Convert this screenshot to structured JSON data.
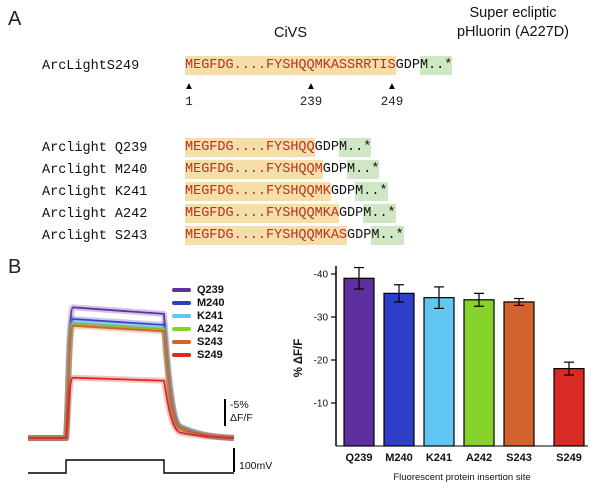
{
  "figure": {
    "panel_a_label": "A",
    "panel_b_label": "B"
  },
  "panelA": {
    "civs_header": "CiVS",
    "phluorin_header_line1": "Super ecliptic",
    "phluorin_header_line2": "pHluorin (A227D)",
    "reference": {
      "name": "ArcLightS249",
      "civs_seq": "MEGFDG....FYSHQQMKASSRRTIS",
      "linker_seq": "GDP",
      "phluorin_seq": "M..*"
    },
    "insertion_markers": [
      "1",
      "239",
      "249"
    ],
    "variants": [
      {
        "name": "Arclight Q239",
        "civs_seq": "MEGFDG....FYSHQQ",
        "linker_seq": "GDP",
        "phluorin_seq": "M..*"
      },
      {
        "name": "Arclight M240",
        "civs_seq": "MEGFDG....FYSHQQM",
        "linker_seq": "GDP",
        "phluorin_seq": "M..*"
      },
      {
        "name": "Arclight K241",
        "civs_seq": "MEGFDG....FYSHQQMK",
        "linker_seq": "GDP",
        "phluorin_seq": "M..*"
      },
      {
        "name": "Arclight A242",
        "civs_seq": "MEGFDG....FYSHQQMKA",
        "linker_seq": "GDP",
        "phluorin_seq": "M..*"
      },
      {
        "name": "Arclight S243",
        "civs_seq": "MEGFDG....FYSHQQMKAS",
        "linker_seq": "GDP",
        "phluorin_seq": "M..*"
      }
    ],
    "highlight_colors": {
      "civs_bg": "#f3dfa7",
      "civs_text": "#bf2f25",
      "phluorin_bg": "#cfe7c4"
    }
  },
  "panelB": {
    "scalebar_dff_value": "-5%",
    "scalebar_dff_unit": "ΔF/F",
    "scalebar_voltage": "100mV"
  },
  "chart_data": [
    {
      "type": "line",
      "series": [
        {
          "name": "Q239",
          "color": "#5e2f9e",
          "peak_dff_pct": -39
        },
        {
          "name": "M240",
          "color": "#2f3ec9",
          "peak_dff_pct": -35.5
        },
        {
          "name": "K241",
          "color": "#62c6f2",
          "peak_dff_pct": -34.5
        },
        {
          "name": "A242",
          "color": "#86d32c",
          "peak_dff_pct": -34
        },
        {
          "name": "S243",
          "color": "#d2622e",
          "peak_dff_pct": -33.5
        },
        {
          "name": "S249",
          "color": "#d92b23",
          "peak_dff_pct": -18
        }
      ]
    },
    {
      "type": "bar",
      "categories": [
        "Q239",
        "M240",
        "K241",
        "A242",
        "S243",
        "S249"
      ],
      "values": [
        -39,
        -35.5,
        -34.5,
        -34,
        -33.5,
        -18
      ],
      "errors": [
        2.5,
        2,
        2.5,
        1.5,
        0.8,
        1.5
      ],
      "colors": [
        "#5e2f9e",
        "#2f3ec9",
        "#62c6f2",
        "#86d32c",
        "#d2622e",
        "#d92b23"
      ],
      "ylabel": "% ΔF/F",
      "xlabel": "Fluorescent protein insertion site",
      "ylim": [
        0,
        -40
      ],
      "yticks": [
        -10,
        -20,
        -30,
        -40
      ]
    }
  ]
}
